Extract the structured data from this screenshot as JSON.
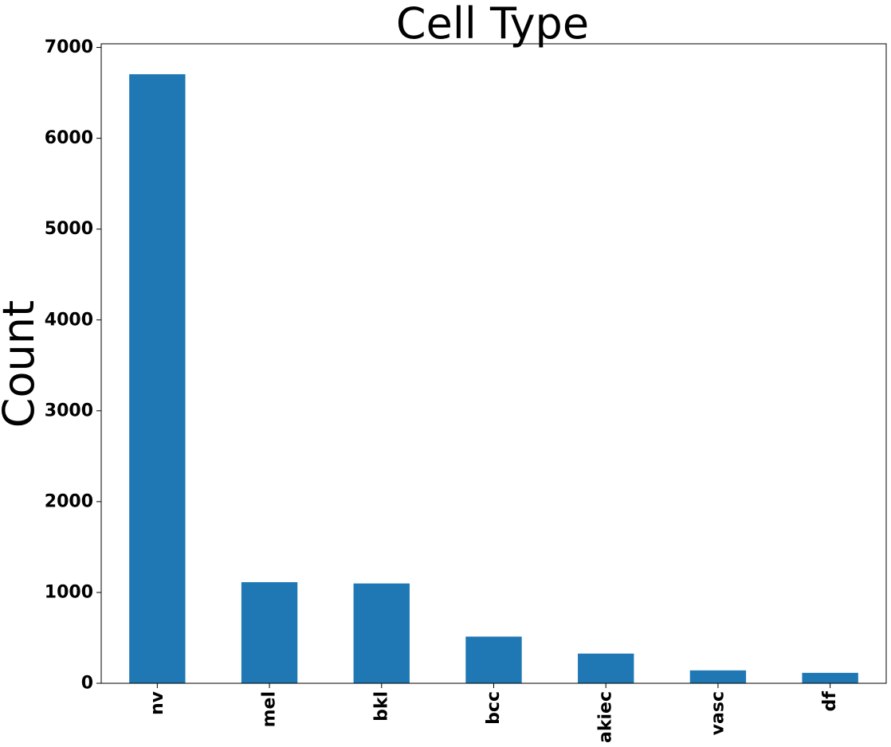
{
  "chart_data": {
    "type": "bar",
    "title": "Cell Type",
    "xlabel": "",
    "ylabel": "Count",
    "categories": [
      "nv",
      "mel",
      "bkl",
      "bcc",
      "akiec",
      "vasc",
      "df"
    ],
    "values": [
      6705,
      1113,
      1099,
      514,
      327,
      142,
      115
    ],
    "ylim": [
      0,
      7040
    ],
    "yticks": [
      0,
      1000,
      2000,
      3000,
      4000,
      5000,
      6000,
      7000
    ],
    "grid": false,
    "bar_color": "#1f77b4"
  }
}
